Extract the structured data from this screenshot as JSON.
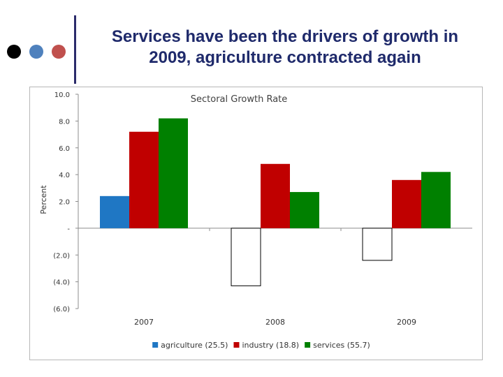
{
  "slide": {
    "title_line1": "Services have been the drivers of growth in",
    "title_line2": "2009, agriculture contracted again",
    "accent_colors": [
      "#000000",
      "#4f81bd",
      "#c0504d"
    ]
  },
  "chart_data": {
    "type": "bar",
    "title": "Sectoral Growth Rate",
    "ylabel": "Percent",
    "xlabel": "",
    "categories": [
      "2007",
      "2008",
      "2009"
    ],
    "series": [
      {
        "name": "agriculture (25.5)",
        "color": "#1f77c4",
        "values": [
          2.4,
          -4.3,
          -2.4
        ]
      },
      {
        "name": "industry (18.8)",
        "color": "#c00000",
        "values": [
          7.2,
          4.8,
          3.6
        ]
      },
      {
        "name": "services (55.7)",
        "color": "#008000",
        "values": [
          8.2,
          2.7,
          4.2
        ]
      }
    ],
    "negative_style": "white fill with black outline",
    "ylim": [
      -6,
      10
    ],
    "yticks": [
      {
        "value": 10,
        "label": "10.0"
      },
      {
        "value": 8,
        "label": "8.0"
      },
      {
        "value": 6,
        "label": "6.0"
      },
      {
        "value": 4,
        "label": "4.0"
      },
      {
        "value": 2,
        "label": "2.0"
      },
      {
        "value": 0,
        "label": "-"
      },
      {
        "value": -2,
        "label": "(2.0)"
      },
      {
        "value": -4,
        "label": "(4.0)"
      },
      {
        "value": -6,
        "label": "(6.0)"
      }
    ],
    "grid": false,
    "legend_position": "bottom"
  }
}
